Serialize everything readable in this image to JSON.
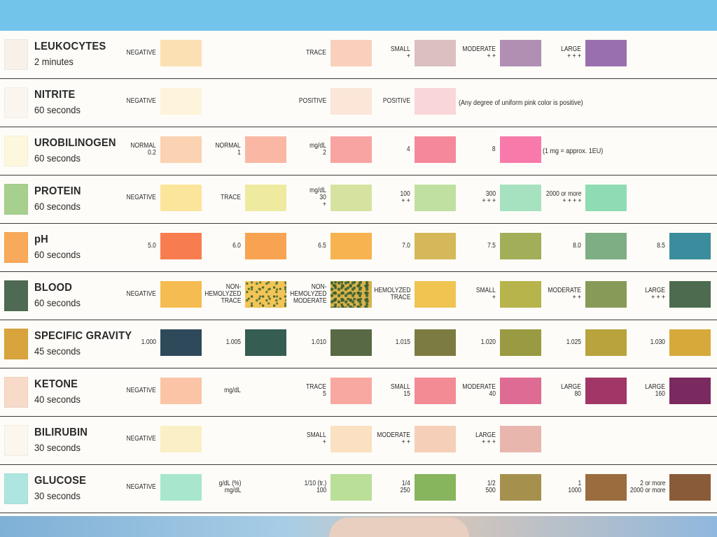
{
  "rows": [
    {
      "name": "LEUKOCYTES",
      "time": "2 minutes",
      "strip_color": "#f7f1ea",
      "swatches": [
        {
          "label": "NEGATIVE",
          "color": "#fbe0b4"
        },
        {
          "label": "TRACE",
          "color": "#f9d0bb"
        },
        {
          "label": "SMALL\n+",
          "color": "#dcbfc0"
        },
        {
          "label": "MODERATE\n+ +",
          "color": "#b08fb3"
        },
        {
          "label": "LARGE\n+ + +",
          "color": "#9a6fb0"
        }
      ]
    },
    {
      "name": "NITRITE",
      "time": "60 seconds",
      "strip_color": "#fbf5ef",
      "swatches": [
        {
          "label": "NEGATIVE",
          "color": "#fdf4db"
        },
        {
          "label": "POSITIVE",
          "color": "#fbe6d8"
        },
        {
          "label": "POSITIVE",
          "color": "#f9d6d8"
        }
      ],
      "note": "(Any degree of uniform pink color is positive)"
    },
    {
      "name": "UROBILINOGEN",
      "time": "60 seconds",
      "strip_color": "#fdf8dd",
      "swatches": [
        {
          "label": "NORMAL\n0.2",
          "color": "#fbd2b2"
        },
        {
          "label": "NORMAL\n1",
          "color": "#fab8a4"
        },
        {
          "label": "mg/dL\n2",
          "color": "#f8a4a2"
        },
        {
          "label": "4",
          "color": "#f5889a"
        },
        {
          "label": "8",
          "color": "#f77aaa"
        }
      ],
      "note": "(1 mg = approx. 1EU)"
    },
    {
      "name": "PROTEIN",
      "time": "60 seconds",
      "strip_color": "#a7d08f",
      "swatches": [
        {
          "label": "NEGATIVE",
          "color": "#fbe59b"
        },
        {
          "label": "TRACE",
          "color": "#eeea9f"
        },
        {
          "label": "mg/dL\n30\n+",
          "color": "#d6e3a0"
        },
        {
          "label": "100\n+ +",
          "color": "#bfe0a0"
        },
        {
          "label": "300\n+ + +",
          "color": "#a6e2c0"
        },
        {
          "label": "2000 or more\n+ + + +",
          "color": "#8fdcb4"
        }
      ]
    },
    {
      "name": "pH",
      "time": "60 seconds",
      "strip_color": "#f8a95a",
      "swatches": [
        {
          "label": "5.0",
          "color": "#f77d50"
        },
        {
          "label": "6.0",
          "color": "#f8a351"
        },
        {
          "label": "6.5",
          "color": "#f7b350"
        },
        {
          "label": "7.0",
          "color": "#d4b85a"
        },
        {
          "label": "7.5",
          "color": "#a3ae58"
        },
        {
          "label": "8.0",
          "color": "#7eae83"
        },
        {
          "label": "8.5",
          "color": "#3b8c9c"
        }
      ]
    },
    {
      "name": "BLOOD",
      "time": "60 seconds",
      "strip_color": "#4f6a52",
      "swatches": [
        {
          "label": "NEGATIVE",
          "color": "#f5bc52"
        },
        {
          "label": "NON-\nHEMOLYZED\nTRACE",
          "color": "#f3c457",
          "pattern": "speck"
        },
        {
          "label": "NON-\nHEMOLYZED\nMODERATE",
          "color": "#d8b24a",
          "pattern": "speck2"
        },
        {
          "label": "HEMOLYZED\nTRACE",
          "color": "#efc451"
        },
        {
          "label": "SMALL\n+",
          "color": "#b6b44a"
        },
        {
          "label": "MODERATE\n+ +",
          "color": "#879a57"
        },
        {
          "label": "LARGE\n+ + +",
          "color": "#4d6b4e"
        }
      ]
    },
    {
      "name": "SPECIFIC GRAVITY",
      "time": "45 seconds",
      "strip_color": "#d9a43b",
      "swatches": [
        {
          "label": "1.000",
          "color": "#2e4a5a"
        },
        {
          "label": "1.005",
          "color": "#355d52"
        },
        {
          "label": "1.010",
          "color": "#586a45"
        },
        {
          "label": "1.015",
          "color": "#7c7c42"
        },
        {
          "label": "1.020",
          "color": "#9a9a42"
        },
        {
          "label": "1.025",
          "color": "#b8a33d"
        },
        {
          "label": "1.030",
          "color": "#d6a93a"
        }
      ]
    },
    {
      "name": "KETONE",
      "time": "40 seconds",
      "strip_color": "#f7dac8",
      "swatches": [
        {
          "label": "NEGATIVE",
          "color": "#fbc4a6"
        },
        {
          "label": "mg/dL",
          "color": null
        },
        {
          "label": "TRACE\n5",
          "color": "#f8a8a0"
        },
        {
          "label": "SMALL\n15",
          "color": "#f28b94"
        },
        {
          "label": "MODERATE\n40",
          "color": "#de6b93"
        },
        {
          "label": "LARGE\n80",
          "color": "#a03766"
        },
        {
          "label": "LARGE\n160",
          "color": "#7a2a5e"
        }
      ]
    },
    {
      "name": "BILIRUBIN",
      "time": "30 seconds",
      "strip_color": "#fbf6ee",
      "swatches": [
        {
          "label": "NEGATIVE",
          "color": "#fbefc5"
        },
        {
          "label": "SMALL\n+",
          "color": "#fbe1c1"
        },
        {
          "label": "MODERATE\n+ +",
          "color": "#f5cfb8"
        },
        {
          "label": "LARGE\n+ + +",
          "color": "#e9b6ad"
        }
      ]
    },
    {
      "name": "GLUCOSE",
      "time": "30 seconds",
      "strip_color": "#aee5e0",
      "swatches": [
        {
          "label": "NEGATIVE",
          "color": "#a8e6cd"
        },
        {
          "label": "g/dL (%)\nmg/dL",
          "color": null
        },
        {
          "label": "1/10 (tr.)\n100",
          "color": "#b9df98"
        },
        {
          "label": "1/4\n250",
          "color": "#87b55d"
        },
        {
          "label": "1/2\n500",
          "color": "#a6904e"
        },
        {
          "label": "1\n1000",
          "color": "#9a6c3e"
        },
        {
          "label": "2 or more\n2000 or more",
          "color": "#8a5b39"
        }
      ]
    }
  ]
}
